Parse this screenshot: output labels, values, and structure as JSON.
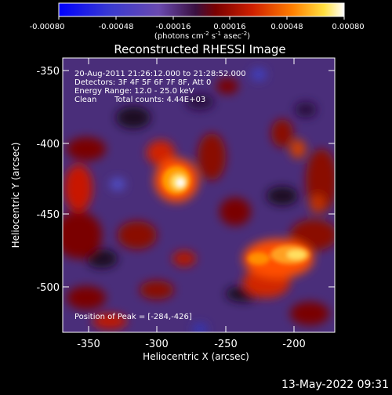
{
  "colorbar": {
    "tick_labels": [
      "-0.00080",
      "-0.00048",
      "-0.00016",
      "0.00016",
      "0.00048",
      "0.00080"
    ],
    "units_label": "(photons cm",
    "units_exp1": "-2",
    "units_mid": " s",
    "units_exp2": "-1",
    "units_end": " asec",
    "units_exp3": "-2",
    "units_close": ")"
  },
  "title": "Reconstructed RHESSI Image",
  "info": {
    "time_range": "20-Aug-2011 21:26:12.000 to 21:28:52.000",
    "detectors": "Detectors: 3F 4F 5F 6F 7F 8F, Att 0",
    "energy": "Energy Range: 12.0 - 25.0 keV",
    "algorithm": "Clean",
    "counts": "Total counts: 4.44E+03",
    "peak": "Position of Peak = [-284,-426]"
  },
  "axes": {
    "xlabel": "Heliocentric X (arcsec)",
    "ylabel": "Heliocentric Y (arcsec)",
    "xticks": [
      "-350",
      "-300",
      "-250",
      "-200"
    ],
    "yticks": [
      "-350",
      "-400",
      "-450",
      "-500"
    ]
  },
  "footer_date": "13-May-2022 09:31"
}
